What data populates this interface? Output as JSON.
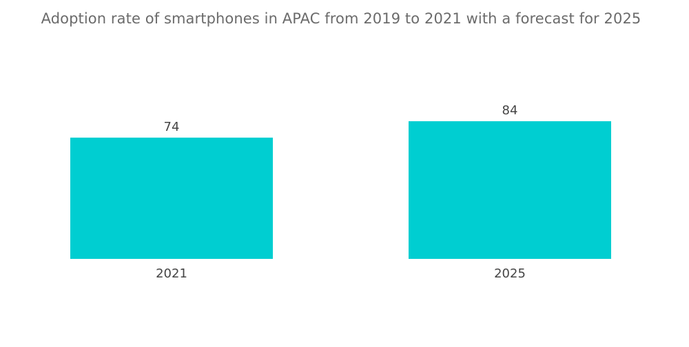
{
  "chart_data": {
    "type": "bar",
    "title": "Adoption rate of smartphones in APAC from 2019 to 2021 with a forecast for 2025",
    "categories": [
      "2021",
      "2025"
    ],
    "values": [
      74,
      84
    ],
    "value_labels": [
      "74",
      "84"
    ],
    "xlabel": "",
    "ylabel": "",
    "ylim": [
      0,
      100
    ],
    "grid": false,
    "legend": "none",
    "bar_color": "#00CED1"
  }
}
